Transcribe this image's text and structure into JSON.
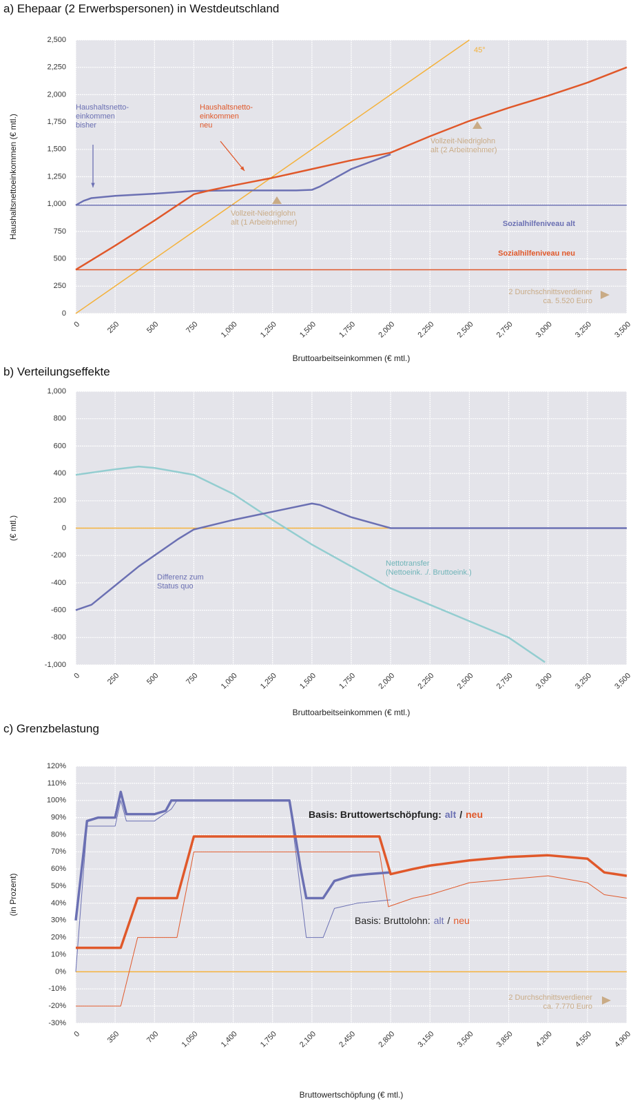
{
  "chart_data": [
    {
      "type": "line",
      "title": "a) Ehepaar (2 Erwerbspersonen) in Westdeutschland",
      "xlabel": "Bruttoarbeitseinkommen (€ mtl.)",
      "ylabel": "Haushaltsnettoeinkommen (€ mtl.)",
      "xlim": [
        0,
        3500
      ],
      "ylim": [
        0,
        2500
      ],
      "grid": true,
      "xticks": [
        0,
        250,
        500,
        750,
        {
          "value": 1000,
          "label": "1,000"
        },
        {
          "value": 1250,
          "label": "1,250"
        },
        {
          "value": 1500,
          "label": "1,500"
        },
        {
          "value": 1750,
          "label": "1,750"
        },
        {
          "value": 2000,
          "label": "2,000"
        },
        {
          "value": 2250,
          "label": "2,250"
        },
        {
          "value": 2500,
          "label": "2,500"
        },
        {
          "value": 2750,
          "label": "2,750"
        },
        {
          "value": 3000,
          "label": "3,000"
        },
        {
          "value": 3250,
          "label": "3,250"
        },
        {
          "value": 3500,
          "label": "3,500"
        }
      ],
      "yticks": [
        0,
        250,
        500,
        750,
        {
          "value": 1000,
          "label": "1,000"
        },
        {
          "value": 1250,
          "label": "1,250"
        },
        {
          "value": 1500,
          "label": "1,500"
        },
        {
          "value": 1750,
          "label": "1,750"
        },
        {
          "value": 2000,
          "label": "2,000"
        },
        {
          "value": 2250,
          "label": "2,250"
        },
        {
          "value": 2500,
          "label": "2,500"
        }
      ],
      "series": [
        {
          "color": "#f4b13a",
          "width": 1.5,
          "x": [
            0,
            2500
          ],
          "values": [
            0,
            2500
          ]
        },
        {
          "color": "#6b70b3",
          "width": 1.5,
          "x": [
            0,
            3500
          ],
          "values": [
            990,
            990
          ]
        },
        {
          "color": "#e0582a",
          "width": 1.5,
          "x": [
            0,
            3500
          ],
          "values": [
            400,
            400
          ]
        },
        {
          "color": "#6b70b3",
          "width": 2.5,
          "x": [
            0,
            50,
            100,
            250,
            500,
            750,
            1000,
            1250,
            1400,
            1500,
            1550,
            1750,
            2000
          ],
          "values": [
            990,
            1030,
            1055,
            1075,
            1095,
            1120,
            1125,
            1125,
            1125,
            1130,
            1160,
            1320,
            1455
          ]
        },
        {
          "color": "#e0582a",
          "width": 2.5,
          "x": [
            0,
            250,
            500,
            750,
            850,
            1000,
            1250,
            1500,
            1750,
            2000,
            2250,
            2500,
            2750,
            3000,
            3250,
            3500
          ],
          "values": [
            400,
            620,
            850,
            1090,
            1125,
            1170,
            1240,
            1320,
            1400,
            1470,
            1620,
            1760,
            1880,
            1990,
            2110,
            2250
          ]
        }
      ],
      "annotations": [
        [
          "45°"
        ],
        [
          "Haushaltsnetto-",
          "einkommen",
          "bisher"
        ],
        [
          "Haushaltsnetto-",
          "einkommen",
          "neu"
        ],
        [
          "Vollzeit-Niedriglohn",
          "alt (1 Arbeitnehmer)"
        ],
        [
          "Vollzeit-Niedriglohn",
          "alt (2 Arbeitnehmer)"
        ],
        [
          "Sozialhilfeniveau alt"
        ],
        [
          "Sozialhilfeniveau neu"
        ],
        [
          "2 Durchschnittsverdiener",
          "ca. 5.520 Euro"
        ]
      ]
    },
    {
      "type": "line",
      "title": "b) Verteilungseffekte",
      "xlabel": "Bruttoarbeitseinkommen (€ mtl.)",
      "ylabel": "(€ mtl.)",
      "xlim": [
        0,
        3500
      ],
      "ylim": [
        -1000,
        1000
      ],
      "grid": true,
      "xticks": [
        0,
        250,
        500,
        750,
        {
          "value": 1000,
          "label": "1,000"
        },
        {
          "value": 1250,
          "label": "1,250"
        },
        {
          "value": 1500,
          "label": "1,500"
        },
        {
          "value": 1750,
          "label": "1,750"
        },
        {
          "value": 2000,
          "label": "2,000"
        },
        {
          "value": 2250,
          "label": "2,250"
        },
        {
          "value": 2500,
          "label": "2,500"
        },
        {
          "value": 2750,
          "label": "2,750"
        },
        {
          "value": 3000,
          "label": "3,000"
        },
        {
          "value": 3250,
          "label": "3,250"
        },
        {
          "value": 3500,
          "label": "3,500"
        }
      ],
      "yticks": [
        {
          "value": -1000,
          "label": "-1,000"
        },
        -800,
        -600,
        -400,
        -200,
        0,
        200,
        400,
        600,
        800,
        {
          "value": 1000,
          "label": "1,000"
        }
      ],
      "series": [
        {
          "color": "#f4b13a",
          "width": 1.5,
          "x": [
            0,
            3500
          ],
          "values": [
            0,
            0
          ]
        },
        {
          "color": "#93cdd0",
          "width": 2.5,
          "x": [
            0,
            250,
            400,
            500,
            750,
            1000,
            1250,
            1500,
            1750,
            2000,
            2250,
            2500,
            2750,
            2980
          ],
          "values": [
            390,
            430,
            450,
            440,
            390,
            250,
            60,
            -120,
            -280,
            -440,
            -560,
            -680,
            -800,
            -980
          ]
        },
        {
          "color": "#6b70b3",
          "width": 2.5,
          "x": [
            0,
            100,
            250,
            400,
            500,
            650,
            750,
            1000,
            1250,
            1500,
            1550,
            1750,
            2000,
            3500
          ],
          "values": [
            -600,
            -560,
            -420,
            -280,
            -200,
            -80,
            -10,
            60,
            120,
            180,
            170,
            80,
            0,
            0
          ]
        }
      ],
      "annotations": [
        [
          "Differenz zum",
          "Status quo"
        ],
        [
          "Nettotransfer",
          "(Nettoeink. ./. Bruttoeink.)"
        ]
      ]
    },
    {
      "type": "line",
      "title": "c) Grenzbelastung",
      "xlabel": "Bruttowertschöpfung (€ mtl.)",
      "ylabel": "(in Prozent)",
      "xlim": [
        0,
        4900
      ],
      "ylim": [
        -30,
        120
      ],
      "grid": true,
      "xticks": [
        0,
        350,
        700,
        {
          "value": 1050,
          "label": "1,050"
        },
        {
          "value": 1400,
          "label": "1,400"
        },
        {
          "value": 1750,
          "label": "1,750"
        },
        {
          "value": 2100,
          "label": "2,100"
        },
        {
          "value": 2450,
          "label": "2,450"
        },
        {
          "value": 2800,
          "label": "2,800"
        },
        {
          "value": 3150,
          "label": "3,150"
        },
        {
          "value": 3500,
          "label": "3,500"
        },
        {
          "value": 3850,
          "label": "3,850"
        },
        {
          "value": 4200,
          "label": "4,200"
        },
        {
          "value": 4550,
          "label": "4,550"
        },
        {
          "value": 4900,
          "label": "4,900"
        }
      ],
      "yticks": [
        {
          "value": -30,
          "label": "-30%"
        },
        {
          "value": -20,
          "label": "-20%"
        },
        {
          "value": -10,
          "label": "-10%"
        },
        {
          "value": 0,
          "label": "0%"
        },
        {
          "value": 10,
          "label": "10%"
        },
        {
          "value": 20,
          "label": "20%"
        },
        {
          "value": 30,
          "label": "30%"
        },
        {
          "value": 40,
          "label": "40%"
        },
        {
          "value": 50,
          "label": "50%"
        },
        {
          "value": 60,
          "label": "60%"
        },
        {
          "value": 70,
          "label": "70%"
        },
        {
          "value": 80,
          "label": "80%"
        },
        {
          "value": 90,
          "label": "90%"
        },
        {
          "value": 100,
          "label": "100%"
        },
        {
          "value": 110,
          "label": "110%"
        },
        {
          "value": 120,
          "label": "120%"
        }
      ],
      "series": [
        {
          "color": "#f4b13a",
          "width": 1.5,
          "x": [
            0,
            4900
          ],
          "values": [
            0,
            0
          ]
        },
        {
          "color": "#6b70b3",
          "width": 1,
          "x": [
            0,
            100,
            350,
            400,
            450,
            700,
            850,
            900,
            1900,
            2050,
            2200,
            2300,
            2500,
            2800
          ],
          "values": [
            0,
            85,
            85,
            100,
            88,
            88,
            95,
            100,
            100,
            20,
            20,
            37,
            40,
            42
          ]
        },
        {
          "color": "#e0582a",
          "width": 1,
          "x": [
            0,
            400,
            550,
            900,
            1050,
            2700,
            2780,
            3000,
            3150,
            3500,
            3850,
            4200,
            4550,
            4700,
            4900
          ],
          "values": [
            -20,
            -20,
            20,
            20,
            70,
            70,
            38,
            43,
            45,
            52,
            54,
            56,
            52,
            45,
            43
          ]
        },
        {
          "color": "#6b70b3",
          "width": 3.5,
          "x": [
            0,
            70,
            100,
            200,
            350,
            400,
            450,
            700,
            800,
            850,
            1050,
            1900,
            2000,
            2050,
            2200,
            2300,
            2450,
            2600,
            2800
          ],
          "values": [
            30,
            70,
            88,
            90,
            90,
            105,
            92,
            92,
            94,
            100,
            100,
            100,
            60,
            43,
            43,
            53,
            56,
            57,
            58
          ]
        },
        {
          "color": "#e0582a",
          "width": 3.5,
          "x": [
            0,
            400,
            550,
            900,
            1050,
            2700,
            2800,
            3000,
            3150,
            3500,
            3850,
            4200,
            4550,
            4700,
            4900
          ],
          "values": [
            14,
            14,
            43,
            43,
            79,
            79,
            57,
            60,
            62,
            65,
            67,
            68,
            66,
            58,
            56
          ]
        }
      ],
      "annotations": [
        [
          "Basis: Bruttowertschöpfung:",
          "alt",
          "/",
          "neu"
        ],
        [
          "Basis: Bruttolohn:",
          "alt",
          "/",
          "neu"
        ],
        [
          "2 Durchschnittsverdiener",
          "ca. 7.770 Euro"
        ]
      ]
    }
  ]
}
